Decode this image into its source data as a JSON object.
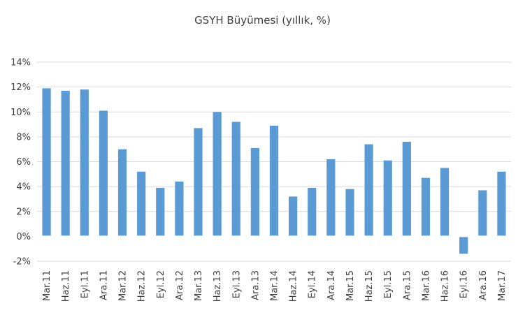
{
  "chart_data": {
    "type": "bar",
    "title": "GSYH Büyümesi (yıllık, %)",
    "xlabel": "",
    "ylabel": "",
    "ylim": [
      -2,
      14
    ],
    "y_ticks": [
      -2,
      0,
      2,
      4,
      6,
      8,
      10,
      12,
      14
    ],
    "y_tick_labels": [
      "-2%",
      "0%",
      "2%",
      "4%",
      "6%",
      "8%",
      "10%",
      "12%",
      "14%"
    ],
    "grid": true,
    "legend": "none",
    "bar_color": "#5b9bd5",
    "categories": [
      "Mar.11",
      "Haz.11",
      "Eyl.11",
      "Ara.11",
      "Mar.12",
      "Haz.12",
      "Eyl.12",
      "Ara.12",
      "Mar.13",
      "Haz.13",
      "Eyl.13",
      "Ara.13",
      "Mar.14",
      "Haz.14",
      "Eyl.14",
      "Ara.14",
      "Mar.15",
      "Haz.15",
      "Eyl.15",
      "Ara.15",
      "Mar.16",
      "Haz.16",
      "Eyl.16",
      "Ara.16",
      "Mar.17"
    ],
    "values": [
      11.9,
      11.7,
      11.8,
      10.1,
      7.0,
      5.2,
      3.9,
      4.4,
      8.7,
      10.0,
      9.2,
      7.1,
      8.9,
      3.2,
      3.9,
      6.2,
      3.8,
      7.4,
      6.1,
      7.6,
      4.7,
      5.5,
      -1.4,
      3.7,
      5.2
    ]
  }
}
